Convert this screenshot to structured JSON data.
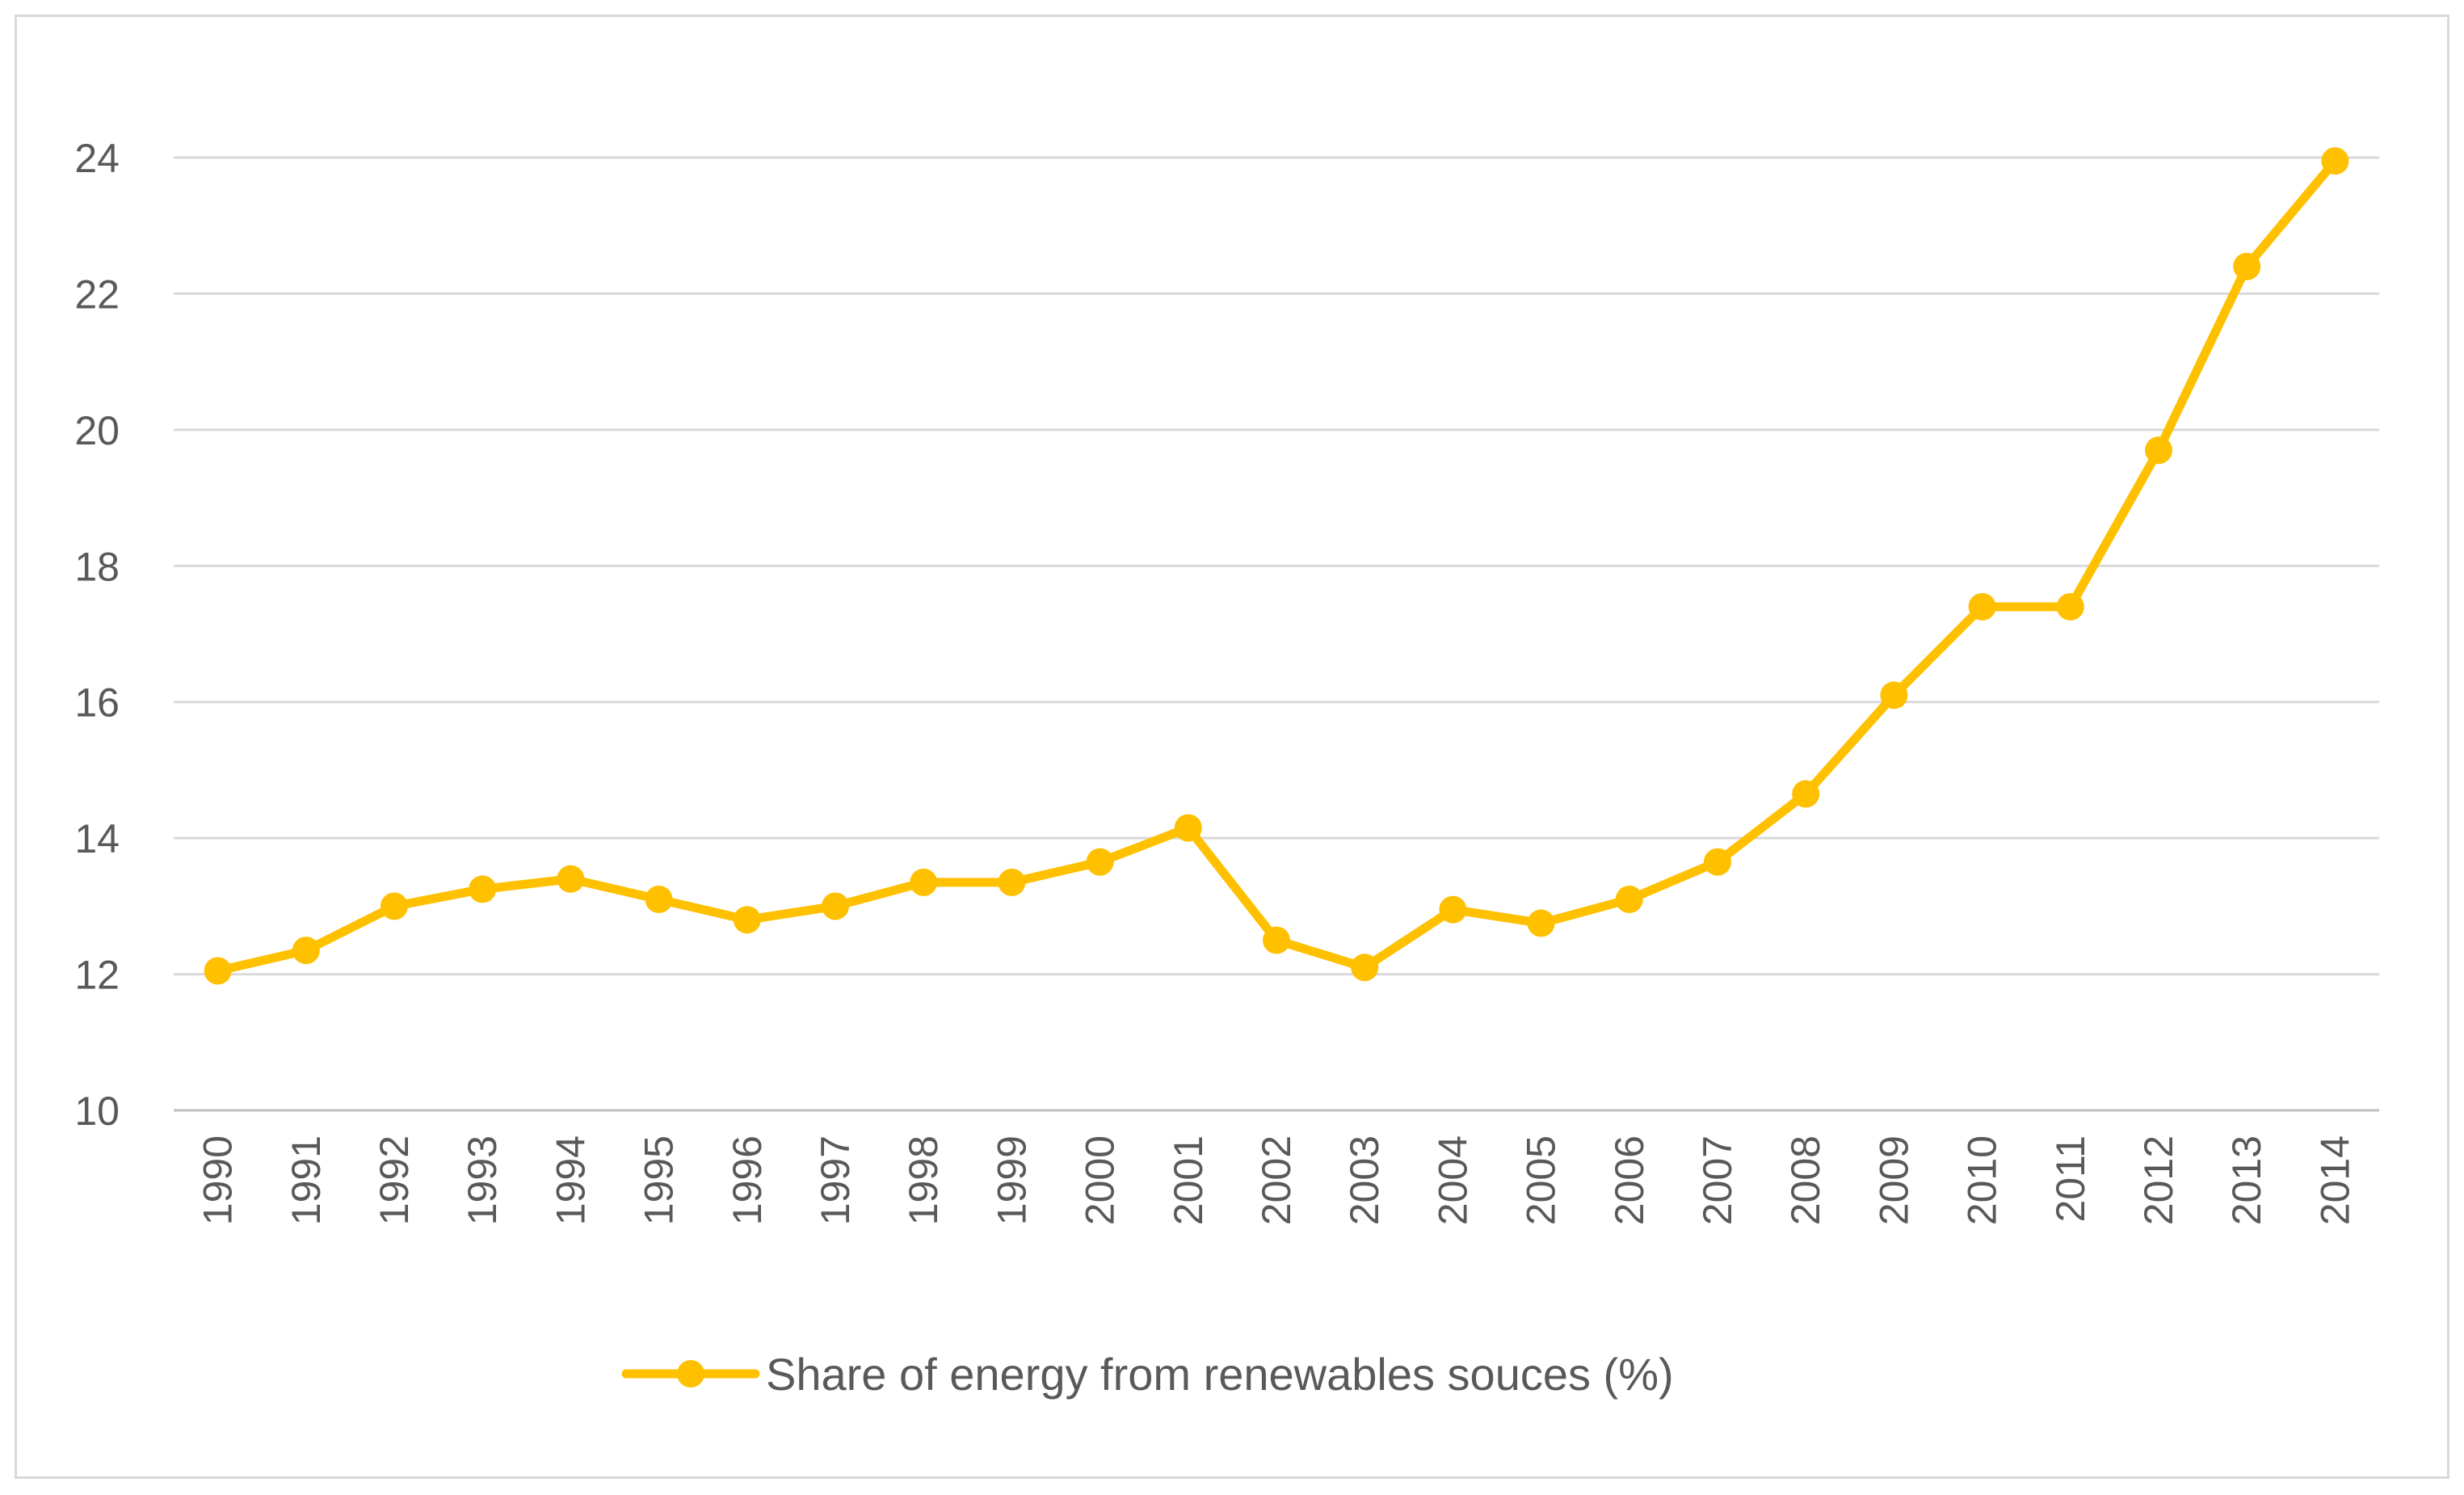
{
  "chart_data": {
    "type": "line",
    "title": "",
    "xlabel": "",
    "ylabel": "",
    "categories": [
      "1990",
      "1991",
      "1992",
      "1993",
      "1994",
      "1995",
      "1996",
      "1997",
      "1998",
      "1999",
      "2000",
      "2001",
      "2002",
      "2003",
      "2004",
      "2005",
      "2006",
      "2007",
      "2008",
      "2009",
      "2010",
      "2011",
      "2012",
      "2013",
      "2014"
    ],
    "series": [
      {
        "name": "Share of energy from renewables souces (%)",
        "color": "#FFC000",
        "values": [
          12.05,
          12.35,
          13.0,
          13.25,
          13.4,
          13.1,
          12.8,
          13.0,
          13.35,
          13.35,
          13.65,
          14.15,
          12.5,
          12.1,
          12.95,
          12.75,
          13.1,
          13.65,
          14.65,
          16.1,
          17.4,
          17.4,
          19.7,
          22.4,
          23.95
        ]
      }
    ],
    "yticks": [
      "10",
      "12",
      "14",
      "16",
      "18",
      "20",
      "22",
      "24"
    ],
    "ylim": [
      10,
      24
    ],
    "grid": true,
    "legend_position": "bottom"
  }
}
